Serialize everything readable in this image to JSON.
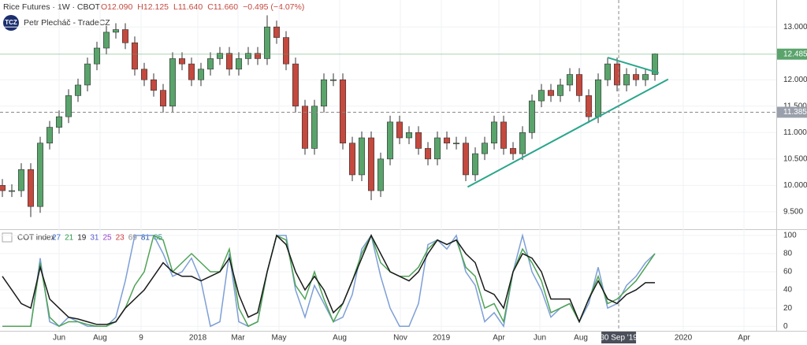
{
  "chart_data": {
    "type": "candlestick",
    "title": "Rice Futures · 1W · CBOT",
    "ohlc_header": [
      "O12.090",
      "H12.125",
      "L11.640",
      "C11.660",
      "−0.495 (−4.07%)"
    ],
    "author": "Petr Plecháč - TradeCZ",
    "logo": "TCZ",
    "up_color": "#5aa46c",
    "down_color": "#c4493f",
    "open": [
      10.0,
      9.9,
      9.9,
      10.3,
      9.6,
      10.8,
      11.1,
      11.3,
      11.7,
      11.9,
      12.3,
      12.6,
      12.9,
      12.95,
      12.7,
      12.2,
      12.0,
      11.8,
      11.5,
      12.4,
      12.3,
      12.0,
      12.2,
      12.4,
      12.5,
      12.2,
      12.4,
      12.5,
      12.4,
      13.0,
      12.8,
      12.3,
      11.5,
      10.7,
      11.5,
      12.0,
      12.0,
      10.8,
      10.2,
      10.9,
      9.9,
      10.5,
      11.2,
      10.9,
      11.0,
      10.7,
      10.5,
      10.9,
      10.8,
      10.8,
      10.2,
      10.6,
      10.8,
      11.2,
      10.7,
      10.6,
      11.0,
      11.6,
      11.8,
      11.7,
      11.9,
      12.1,
      11.7,
      11.3,
      12.0,
      12.3,
      11.9,
      12.1,
      12.0,
      12.1
    ],
    "high": [
      10.12,
      10.02,
      10.42,
      10.42,
      10.92,
      11.22,
      11.42,
      11.82,
      12.02,
      12.42,
      12.72,
      13.02,
      13.07,
      13.07,
      12.82,
      12.32,
      12.12,
      11.92,
      12.52,
      12.52,
      12.42,
      12.32,
      12.52,
      12.62,
      12.62,
      12.52,
      12.62,
      12.62,
      13.22,
      13.12,
      12.92,
      12.42,
      11.62,
      11.62,
      12.12,
      12.12,
      12.12,
      10.92,
      11.02,
      11.02,
      10.62,
      11.32,
      11.32,
      11.12,
      11.12,
      10.82,
      11.02,
      11.02,
      10.92,
      10.92,
      10.72,
      10.92,
      11.32,
      11.32,
      10.82,
      11.12,
      11.72,
      11.92,
      11.92,
      12.02,
      12.22,
      12.22,
      11.82,
      12.12,
      12.42,
      12.42,
      12.22,
      12.22,
      12.22,
      12.5
    ],
    "low": [
      9.78,
      9.78,
      9.78,
      9.4,
      9.48,
      10.68,
      10.98,
      11.18,
      11.58,
      11.78,
      12.18,
      12.48,
      12.78,
      12.58,
      12.08,
      11.88,
      11.68,
      11.38,
      11.38,
      12.18,
      11.88,
      11.88,
      12.08,
      12.28,
      12.08,
      12.08,
      12.28,
      12.28,
      12.28,
      12.68,
      12.18,
      11.38,
      10.58,
      10.58,
      11.38,
      11.88,
      10.68,
      10.08,
      10.08,
      9.72,
      9.78,
      10.38,
      10.78,
      10.78,
      10.58,
      10.38,
      10.38,
      10.68,
      10.68,
      10.08,
      10.08,
      10.48,
      10.68,
      10.58,
      10.48,
      10.48,
      10.88,
      11.48,
      11.58,
      11.58,
      11.78,
      11.58,
      11.18,
      11.18,
      11.88,
      11.78,
      11.78,
      11.88,
      11.88,
      11.98
    ],
    "close": [
      9.9,
      9.9,
      10.3,
      9.6,
      10.8,
      11.1,
      11.3,
      11.7,
      11.9,
      12.3,
      12.6,
      12.9,
      12.95,
      12.7,
      12.2,
      12.0,
      11.8,
      11.5,
      12.4,
      12.3,
      12.0,
      12.2,
      12.4,
      12.5,
      12.2,
      12.4,
      12.5,
      12.4,
      13.0,
      12.8,
      12.3,
      11.5,
      10.7,
      11.5,
      12.0,
      12.0,
      10.8,
      10.2,
      10.9,
      9.9,
      10.5,
      11.2,
      10.9,
      11.0,
      10.7,
      10.5,
      10.9,
      10.8,
      10.8,
      10.2,
      10.6,
      10.8,
      11.2,
      10.7,
      10.6,
      11.0,
      11.6,
      11.8,
      11.7,
      11.9,
      12.1,
      11.7,
      11.3,
      12.0,
      12.3,
      11.9,
      12.1,
      12.0,
      12.1,
      12.49
    ],
    "xlim": [
      -0.25,
      81.83
    ],
    "xticks": [
      {
        "value": 6,
        "label": "Jun"
      },
      {
        "value": 10.33,
        "label": "Aug"
      },
      {
        "value": 14.67,
        "label": "9"
      },
      {
        "value": 20.67,
        "label": "2018"
      },
      {
        "value": 24.92,
        "label": "Mar"
      },
      {
        "value": 29.25,
        "label": "May"
      },
      {
        "value": 35.67,
        "label": "Aug"
      },
      {
        "value": 42.08,
        "label": "Nov"
      },
      {
        "value": 46.42,
        "label": "2019"
      },
      {
        "value": 52.5,
        "label": "Apr"
      },
      {
        "value": 56.83,
        "label": "Jun"
      },
      {
        "value": 61.17,
        "label": "Aug"
      },
      {
        "value": 72,
        "label": "2020"
      },
      {
        "value": 78.42,
        "label": "Apr"
      }
    ],
    "crosshair_x": {
      "value": 65.17,
      "label": "30 Sep '19"
    },
    "ylim": [
      9.17,
      13.51
    ],
    "yticks": [
      {
        "value": 9.5,
        "label": "9.500"
      },
      {
        "value": 10,
        "label": "10.000"
      },
      {
        "value": 10.5,
        "label": "10.500"
      },
      {
        "value": 11,
        "label": "11.000"
      },
      {
        "value": 11.5,
        "label": "11.500"
      },
      {
        "value": 12,
        "label": "12.000"
      },
      {
        "value": 13,
        "label": "13.000"
      }
    ],
    "last_price": {
      "value": 12.485,
      "label": "12.485",
      "color": "#5aa46c"
    },
    "crosshair_y": {
      "value": 11.385,
      "label": "11.385"
    },
    "trendlines": [
      {
        "color": "#2aa68c",
        "x": [
          49.2,
          70.4
        ],
        "y": [
          9.97,
          12.01
        ]
      },
      {
        "color": "#2aa68c",
        "x": [
          64,
          69.4
        ],
        "y": [
          12.42,
          12.13
        ]
      }
    ],
    "indicator": {
      "title": "COT index",
      "params": [
        27,
        21,
        19,
        31,
        25,
        23,
        69,
        81,
        85
      ],
      "param_colors": [
        "#3b6fd1",
        "#2e9a4a",
        "#222222",
        "#5a5ad0",
        "#9a3fcf",
        "#d03a3a",
        "#888888",
        "#1e4fb0",
        "#2a8a7a"
      ],
      "ylim": [
        -5,
        106
      ],
      "yticks": [
        0,
        20,
        40,
        60,
        80,
        100
      ],
      "series": [
        {
          "color": "#7d9fd6",
          "values": [
            0,
            0,
            0,
            0,
            75,
            5,
            0,
            10,
            5,
            0,
            0,
            0,
            10,
            50,
            100,
            100,
            100,
            80,
            55,
            60,
            75,
            50,
            0,
            5,
            80,
            5,
            0,
            5,
            60,
            100,
            100,
            40,
            10,
            45,
            25,
            5,
            10,
            35,
            85,
            100,
            55,
            20,
            0,
            0,
            25,
            90,
            95,
            85,
            100,
            60,
            45,
            5,
            15,
            0,
            60,
            100,
            60,
            40,
            10,
            20,
            25,
            5,
            25,
            65,
            20,
            25,
            45,
            55,
            70,
            80
          ]
        },
        {
          "color": "#4fa356",
          "values": [
            0,
            0,
            0,
            0,
            70,
            10,
            0,
            5,
            5,
            2,
            0,
            0,
            5,
            20,
            45,
            60,
            100,
            95,
            60,
            70,
            80,
            70,
            60,
            60,
            85,
            20,
            0,
            5,
            60,
            100,
            95,
            45,
            30,
            60,
            30,
            5,
            25,
            50,
            80,
            100,
            70,
            60,
            55,
            55,
            65,
            85,
            95,
            90,
            95,
            65,
            55,
            20,
            25,
            5,
            60,
            85,
            70,
            50,
            15,
            20,
            25,
            5,
            30,
            55,
            25,
            30,
            40,
            50,
            65,
            80
          ]
        },
        {
          "color": "#1a1a1a",
          "values": [
            55,
            40,
            25,
            20,
            65,
            30,
            20,
            10,
            8,
            5,
            2,
            2,
            5,
            20,
            30,
            40,
            55,
            70,
            60,
            55,
            55,
            50,
            55,
            60,
            75,
            35,
            10,
            15,
            60,
            100,
            90,
            60,
            40,
            55,
            40,
            15,
            25,
            50,
            75,
            100,
            80,
            60,
            55,
            50,
            60,
            80,
            95,
            90,
            95,
            80,
            70,
            40,
            35,
            20,
            60,
            80,
            75,
            60,
            30,
            30,
            30,
            5,
            30,
            50,
            30,
            25,
            35,
            40,
            48,
            48
          ]
        }
      ]
    }
  }
}
